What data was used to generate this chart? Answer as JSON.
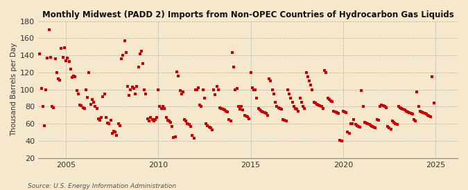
{
  "title": "Monthly Midwest (PADD 2) Imports from Non-OPEC Countries of Hydrocarbon Gas Liquids",
  "ylabel": "Thousand Barrels per Day",
  "source": "Source: U.S. Energy Information Administration",
  "background_color": "#f5e8cc",
  "plot_background_color": "#f5e8cc",
  "dot_color": "#cc0000",
  "ylim": [
    20,
    180
  ],
  "xlim_start": 2003.5,
  "xlim_end": 2026.2,
  "yticks": [
    20,
    40,
    60,
    80,
    100,
    120,
    140,
    160,
    180
  ],
  "xticks": [
    2005,
    2010,
    2015,
    2020,
    2025
  ],
  "data": [
    [
      2003.58,
      142
    ],
    [
      2003.67,
      101
    ],
    [
      2003.75,
      80
    ],
    [
      2003.83,
      58
    ],
    [
      2003.92,
      100
    ],
    [
      2004.0,
      137
    ],
    [
      2004.08,
      170
    ],
    [
      2004.17,
      138
    ],
    [
      2004.25,
      80
    ],
    [
      2004.33,
      79
    ],
    [
      2004.42,
      136
    ],
    [
      2004.5,
      120
    ],
    [
      2004.58,
      113
    ],
    [
      2004.67,
      111
    ],
    [
      2004.75,
      148
    ],
    [
      2004.83,
      138
    ],
    [
      2004.92,
      149
    ],
    [
      2005.0,
      134
    ],
    [
      2005.08,
      137
    ],
    [
      2005.17,
      133
    ],
    [
      2005.25,
      124
    ],
    [
      2005.33,
      114
    ],
    [
      2005.42,
      116
    ],
    [
      2005.5,
      115
    ],
    [
      2005.58,
      99
    ],
    [
      2005.67,
      95
    ],
    [
      2005.75,
      82
    ],
    [
      2005.83,
      81
    ],
    [
      2005.92,
      79
    ],
    [
      2006.0,
      78
    ],
    [
      2006.08,
      100
    ],
    [
      2006.17,
      91
    ],
    [
      2006.25,
      120
    ],
    [
      2006.33,
      83
    ],
    [
      2006.42,
      88
    ],
    [
      2006.5,
      85
    ],
    [
      2006.58,
      80
    ],
    [
      2006.67,
      78
    ],
    [
      2006.75,
      66
    ],
    [
      2006.83,
      64
    ],
    [
      2006.92,
      67
    ],
    [
      2007.0,
      92
    ],
    [
      2007.08,
      95
    ],
    [
      2007.17,
      67
    ],
    [
      2007.25,
      61
    ],
    [
      2007.33,
      60
    ],
    [
      2007.42,
      64
    ],
    [
      2007.5,
      49
    ],
    [
      2007.58,
      51
    ],
    [
      2007.67,
      50
    ],
    [
      2007.75,
      46
    ],
    [
      2007.83,
      60
    ],
    [
      2007.92,
      58
    ],
    [
      2008.0,
      136
    ],
    [
      2008.08,
      140
    ],
    [
      2008.17,
      157
    ],
    [
      2008.25,
      143
    ],
    [
      2008.33,
      104
    ],
    [
      2008.42,
      93
    ],
    [
      2008.5,
      100
    ],
    [
      2008.58,
      103
    ],
    [
      2008.67,
      101
    ],
    [
      2008.75,
      95
    ],
    [
      2008.83,
      104
    ],
    [
      2008.92,
      126
    ],
    [
      2009.0,
      142
    ],
    [
      2009.08,
      145
    ],
    [
      2009.17,
      130
    ],
    [
      2009.25,
      100
    ],
    [
      2009.33,
      95
    ],
    [
      2009.42,
      66
    ],
    [
      2009.5,
      63
    ],
    [
      2009.58,
      67
    ],
    [
      2009.67,
      65
    ],
    [
      2009.75,
      63
    ],
    [
      2009.83,
      65
    ],
    [
      2009.92,
      67
    ],
    [
      2010.0,
      100
    ],
    [
      2010.08,
      80
    ],
    [
      2010.17,
      78
    ],
    [
      2010.25,
      80
    ],
    [
      2010.33,
      78
    ],
    [
      2010.42,
      67
    ],
    [
      2010.5,
      64
    ],
    [
      2010.58,
      63
    ],
    [
      2010.67,
      62
    ],
    [
      2010.75,
      57
    ],
    [
      2010.83,
      44
    ],
    [
      2010.92,
      45
    ],
    [
      2011.0,
      121
    ],
    [
      2011.08,
      116
    ],
    [
      2011.17,
      99
    ],
    [
      2011.25,
      95
    ],
    [
      2011.33,
      97
    ],
    [
      2011.42,
      65
    ],
    [
      2011.5,
      63
    ],
    [
      2011.58,
      60
    ],
    [
      2011.67,
      59
    ],
    [
      2011.75,
      57
    ],
    [
      2011.83,
      46
    ],
    [
      2011.92,
      43
    ],
    [
      2012.0,
      100
    ],
    [
      2012.08,
      100
    ],
    [
      2012.17,
      102
    ],
    [
      2012.25,
      82
    ],
    [
      2012.33,
      80
    ],
    [
      2012.42,
      100
    ],
    [
      2012.5,
      90
    ],
    [
      2012.58,
      60
    ],
    [
      2012.67,
      58
    ],
    [
      2012.75,
      56
    ],
    [
      2012.83,
      55
    ],
    [
      2012.92,
      53
    ],
    [
      2013.0,
      100
    ],
    [
      2013.08,
      94
    ],
    [
      2013.17,
      104
    ],
    [
      2013.25,
      100
    ],
    [
      2013.33,
      79
    ],
    [
      2013.42,
      78
    ],
    [
      2013.5,
      77
    ],
    [
      2013.58,
      76
    ],
    [
      2013.67,
      75
    ],
    [
      2013.75,
      74
    ],
    [
      2013.83,
      65
    ],
    [
      2013.92,
      63
    ],
    [
      2014.0,
      143
    ],
    [
      2014.08,
      126
    ],
    [
      2014.17,
      100
    ],
    [
      2014.25,
      101
    ],
    [
      2014.33,
      80
    ],
    [
      2014.42,
      77
    ],
    [
      2014.5,
      80
    ],
    [
      2014.58,
      76
    ],
    [
      2014.67,
      70
    ],
    [
      2014.75,
      69
    ],
    [
      2014.83,
      68
    ],
    [
      2014.92,
      66
    ],
    [
      2015.0,
      120
    ],
    [
      2015.08,
      102
    ],
    [
      2015.17,
      100
    ],
    [
      2015.25,
      100
    ],
    [
      2015.33,
      90
    ],
    [
      2015.42,
      78
    ],
    [
      2015.5,
      76
    ],
    [
      2015.58,
      75
    ],
    [
      2015.67,
      74
    ],
    [
      2015.75,
      73
    ],
    [
      2015.83,
      72
    ],
    [
      2015.92,
      70
    ],
    [
      2016.0,
      113
    ],
    [
      2016.08,
      110
    ],
    [
      2016.17,
      100
    ],
    [
      2016.25,
      95
    ],
    [
      2016.33,
      85
    ],
    [
      2016.42,
      80
    ],
    [
      2016.5,
      79
    ],
    [
      2016.58,
      78
    ],
    [
      2016.67,
      77
    ],
    [
      2016.75,
      65
    ],
    [
      2016.83,
      64
    ],
    [
      2016.92,
      63
    ],
    [
      2017.0,
      100
    ],
    [
      2017.08,
      95
    ],
    [
      2017.17,
      90
    ],
    [
      2017.25,
      85
    ],
    [
      2017.33,
      80
    ],
    [
      2017.42,
      78
    ],
    [
      2017.5,
      77
    ],
    [
      2017.58,
      75
    ],
    [
      2017.67,
      90
    ],
    [
      2017.75,
      85
    ],
    [
      2017.83,
      80
    ],
    [
      2017.92,
      78
    ],
    [
      2018.0,
      120
    ],
    [
      2018.08,
      115
    ],
    [
      2018.17,
      110
    ],
    [
      2018.25,
      105
    ],
    [
      2018.33,
      100
    ],
    [
      2018.42,
      85
    ],
    [
      2018.5,
      84
    ],
    [
      2018.58,
      83
    ],
    [
      2018.67,
      82
    ],
    [
      2018.75,
      81
    ],
    [
      2018.83,
      80
    ],
    [
      2018.92,
      78
    ],
    [
      2019.0,
      122
    ],
    [
      2019.08,
      120
    ],
    [
      2019.17,
      90
    ],
    [
      2019.25,
      88
    ],
    [
      2019.33,
      87
    ],
    [
      2019.42,
      86
    ],
    [
      2019.5,
      75
    ],
    [
      2019.58,
      74
    ],
    [
      2019.67,
      73
    ],
    [
      2019.75,
      72
    ],
    [
      2019.83,
      41
    ],
    [
      2019.92,
      40
    ],
    [
      2020.0,
      75
    ],
    [
      2020.08,
      74
    ],
    [
      2020.17,
      73
    ],
    [
      2020.25,
      50
    ],
    [
      2020.33,
      49
    ],
    [
      2020.42,
      60
    ],
    [
      2020.5,
      60
    ],
    [
      2020.58,
      65
    ],
    [
      2020.67,
      59
    ],
    [
      2020.75,
      58
    ],
    [
      2020.83,
      57
    ],
    [
      2020.92,
      56
    ],
    [
      2021.0,
      99
    ],
    [
      2021.08,
      80
    ],
    [
      2021.17,
      62
    ],
    [
      2021.25,
      61
    ],
    [
      2021.33,
      60
    ],
    [
      2021.42,
      59
    ],
    [
      2021.5,
      58
    ],
    [
      2021.58,
      57
    ],
    [
      2021.67,
      56
    ],
    [
      2021.75,
      55
    ],
    [
      2021.83,
      65
    ],
    [
      2021.92,
      64
    ],
    [
      2022.0,
      80
    ],
    [
      2022.08,
      82
    ],
    [
      2022.17,
      81
    ],
    [
      2022.25,
      80
    ],
    [
      2022.33,
      79
    ],
    [
      2022.42,
      57
    ],
    [
      2022.5,
      55
    ],
    [
      2022.58,
      54
    ],
    [
      2022.67,
      63
    ],
    [
      2022.75,
      62
    ],
    [
      2022.83,
      60
    ],
    [
      2022.92,
      59
    ],
    [
      2023.0,
      80
    ],
    [
      2023.08,
      79
    ],
    [
      2023.17,
      78
    ],
    [
      2023.25,
      77
    ],
    [
      2023.33,
      76
    ],
    [
      2023.42,
      75
    ],
    [
      2023.5,
      74
    ],
    [
      2023.58,
      73
    ],
    [
      2023.67,
      72
    ],
    [
      2023.75,
      71
    ],
    [
      2023.83,
      65
    ],
    [
      2023.92,
      63
    ],
    [
      2024.0,
      97
    ],
    [
      2024.08,
      80
    ],
    [
      2024.17,
      75
    ],
    [
      2024.25,
      74
    ],
    [
      2024.33,
      73
    ],
    [
      2024.42,
      72
    ],
    [
      2024.5,
      71
    ],
    [
      2024.58,
      70
    ],
    [
      2024.67,
      69
    ],
    [
      2024.75,
      68
    ],
    [
      2024.83,
      115
    ],
    [
      2024.92,
      84
    ]
  ]
}
